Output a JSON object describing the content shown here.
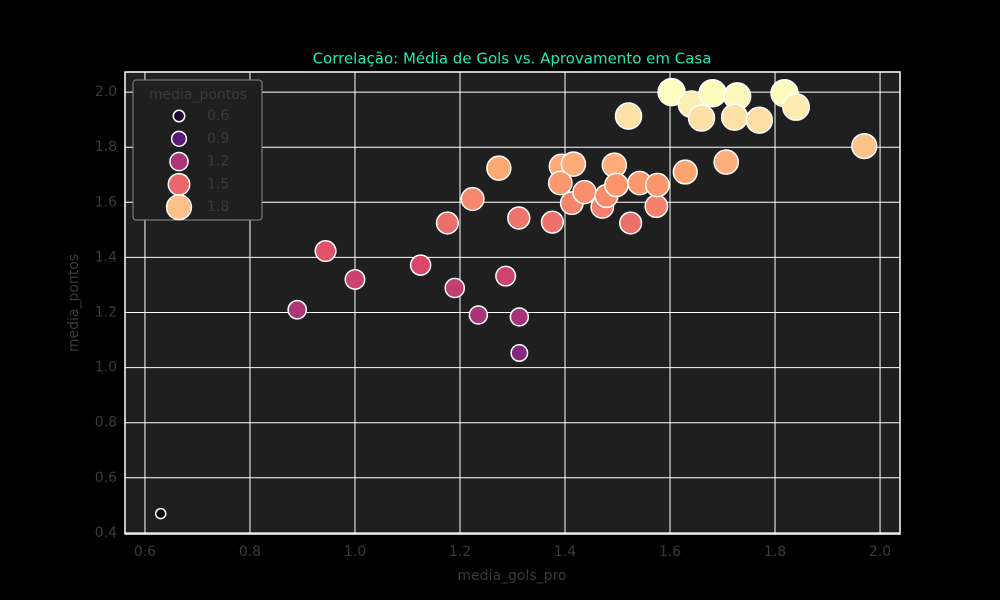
{
  "chart_data": {
    "type": "scatter",
    "title": "Correlação: Média de Gols vs. Aprovamento em Casa",
    "x_label": "media_gols_pro",
    "y_label": "media_pontos",
    "xlim": [
      0.562,
      2.038
    ],
    "ylim": [
      0.396,
      2.073
    ],
    "xticks": [
      0.6,
      0.8,
      {
        "value": 1,
        "label": "1.0"
      },
      1.2,
      1.4,
      1.6,
      1.8,
      {
        "value": 2,
        "label": "2.0"
      }
    ],
    "yticks": [
      0.4,
      0.6,
      0.8,
      {
        "value": 1,
        "label": "1.0"
      },
      1.2,
      1.4,
      1.6,
      1.8,
      {
        "value": 2,
        "label": "2.0"
      }
    ],
    "grid": true,
    "colormap": [
      "#000004",
      "#3b0f70",
      "#8c2981",
      "#de4968",
      "#fe9f6d",
      "#fcfdbf"
    ],
    "series": [
      {
        "name": "media_pontos",
        "x": [
          0.63,
          0.89,
          0.944,
          1.0,
          1.125,
          1.19,
          1.235,
          1.287,
          1.313,
          1.313,
          1.176,
          1.224,
          1.274,
          1.312,
          1.376,
          1.393,
          1.416,
          1.391,
          1.413,
          1.437,
          1.471,
          1.479,
          1.494,
          1.498,
          1.525,
          1.542,
          1.574,
          1.576,
          1.629,
          1.707,
          1.521,
          1.603,
          1.641,
          1.66,
          1.681,
          1.728,
          1.723,
          1.77,
          1.818,
          1.84,
          1.97
        ],
        "values": [
          0.47,
          1.21,
          1.423,
          1.32,
          1.372,
          1.289,
          1.191,
          1.332,
          1.184,
          1.053,
          1.525,
          1.612,
          1.724,
          1.543,
          1.528,
          1.731,
          1.739,
          1.67,
          1.597,
          1.637,
          1.583,
          1.623,
          1.735,
          1.663,
          1.525,
          1.67,
          1.586,
          1.663,
          1.71,
          1.746,
          1.913,
          2.0,
          1.956,
          1.906,
          1.996,
          1.985,
          1.909,
          1.898,
          1.996,
          1.946,
          1.804
        ]
      }
    ],
    "legend": {
      "title": "media_pontos",
      "position": "upper left",
      "entries": [
        0.6,
        0.9,
        1.2,
        1.5,
        1.8
      ]
    }
  }
}
